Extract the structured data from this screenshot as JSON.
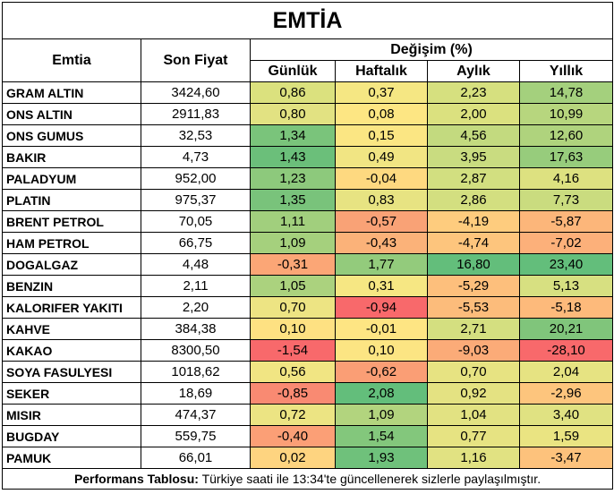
{
  "title": "EMTİA",
  "headers": {
    "commodity": "Emtia",
    "last_price": "Son Fiyat",
    "change_group": "Değişim (%)",
    "daily": "Günlük",
    "weekly": "Haftalık",
    "monthly": "Aylık",
    "yearly": "Yıllık"
  },
  "rows": [
    {
      "name": "GRAM ALTIN",
      "price": "3424,60",
      "changes": [
        "0,86",
        "0,37",
        "2,23",
        "14,78"
      ],
      "colors": [
        "#dbe17e",
        "#f5e783",
        "#d6e07f",
        "#a4d07d"
      ]
    },
    {
      "name": "ONS ALTIN",
      "price": "2911,83",
      "changes": [
        "0,80",
        "0,08",
        "2,00",
        "10,99"
      ],
      "colors": [
        "#e2e282",
        "#fde683",
        "#dbe17f",
        "#b7d67e"
      ]
    },
    {
      "name": "ONS GUMUS",
      "price": "32,53",
      "changes": [
        "1,34",
        "0,15",
        "4,56",
        "12,60"
      ],
      "colors": [
        "#7ac47b",
        "#fbe683",
        "#c3da7f",
        "#afd37d"
      ]
    },
    {
      "name": "BAKIR",
      "price": "4,73",
      "changes": [
        "1,43",
        "0,49",
        "3,95",
        "17,63"
      ],
      "colors": [
        "#6bbf7a",
        "#f1e583",
        "#c9dc80",
        "#97cc7c"
      ]
    },
    {
      "name": "PALADYUM",
      "price": "952,00",
      "changes": [
        "1,23",
        "-0,04",
        "2,87",
        "4,16"
      ],
      "colors": [
        "#8dc97c",
        "#fed980",
        "#d2df80",
        "#dde180"
      ]
    },
    {
      "name": "PLATIN",
      "price": "975,37",
      "changes": [
        "1,35",
        "0,83",
        "2,86",
        "7,73"
      ],
      "colors": [
        "#79c37b",
        "#e7e382",
        "#d3df80",
        "#cadc7f"
      ]
    },
    {
      "name": "BRENT PETROL",
      "price": "70,05",
      "changes": [
        "1,11",
        "-0,57",
        "-4,19",
        "-5,87"
      ],
      "colors": [
        "#a1cf7d",
        "#f9a276",
        "#fecc7e",
        "#fcb67a"
      ]
    },
    {
      "name": "HAM PETROL",
      "price": "66,75",
      "changes": [
        "1,09",
        "-0,43",
        "-4,74",
        "-7,02"
      ],
      "colors": [
        "#a5d07d",
        "#fbb279",
        "#fdc57d",
        "#fcb07a"
      ]
    },
    {
      "name": "DOGALGAZ",
      "price": "4,48",
      "changes": [
        "-0,31",
        "1,77",
        "16,80",
        "23,40"
      ],
      "colors": [
        "#fba676",
        "#93cb7c",
        "#63be7b",
        "#63be7b"
      ]
    },
    {
      "name": "BENZIN",
      "price": "2,11",
      "changes": [
        "1,05",
        "0,31",
        "-5,29",
        "5,13"
      ],
      "colors": [
        "#abd27e",
        "#f6e783",
        "#fdbf7c",
        "#d7e081"
      ]
    },
    {
      "name": "KALORIFER YAKITI",
      "price": "2,20",
      "changes": [
        "0,70",
        "-0,94",
        "-5,53",
        "-5,18"
      ],
      "colors": [
        "#ede483",
        "#f8696b",
        "#fcbc7b",
        "#fdba7b"
      ]
    },
    {
      "name": "KAHVE",
      "price": "384,38",
      "changes": [
        "0,10",
        "-0,01",
        "2,71",
        "20,21"
      ],
      "colors": [
        "#fee182",
        "#fee583",
        "#d4df80",
        "#80c57b"
      ]
    },
    {
      "name": "KAKAO",
      "price": "8300,50",
      "changes": [
        "-1,54",
        "0,10",
        "-9,03",
        "-28,10"
      ],
      "colors": [
        "#f8696b",
        "#fce583",
        "#fbab78",
        "#f8696b"
      ]
    },
    {
      "name": "SOYA FASULYESI",
      "price": "1018,62",
      "changes": [
        "0,56",
        "-0,62",
        "0,70",
        "2,04"
      ],
      "colors": [
        "#f1e583",
        "#fa9e75",
        "#e7e382",
        "#e6e382"
      ]
    },
    {
      "name": "SEKER",
      "price": "18,69",
      "changes": [
        "-0,85",
        "2,08",
        "0,92",
        "-2,96"
      ],
      "colors": [
        "#f98a72",
        "#63be7b",
        "#e4e282",
        "#fdc57d"
      ]
    },
    {
      "name": "MISIR",
      "price": "474,37",
      "changes": [
        "0,72",
        "1,09",
        "1,04",
        "3,40"
      ],
      "colors": [
        "#ece483",
        "#b2d47e",
        "#e2e282",
        "#e0e282"
      ]
    },
    {
      "name": "BUGDAY",
      "price": "559,75",
      "changes": [
        "-0,40",
        "1,54",
        "0,77",
        "1,59"
      ],
      "colors": [
        "#fb9f76",
        "#83c77c",
        "#e6e382",
        "#eae482"
      ]
    },
    {
      "name": "PAMUK",
      "price": "66,01",
      "changes": [
        "0,02",
        "1,93",
        "1,16",
        "-3,47"
      ],
      "colors": [
        "#fed480",
        "#6fc17b",
        "#e1e282",
        "#fdc27c"
      ]
    }
  ],
  "footer": {
    "label": "Performans Tablosu:",
    "text": " Türkiye saati ile 13:34'te güncellenerek sizlerle paylaşılmıştır."
  }
}
